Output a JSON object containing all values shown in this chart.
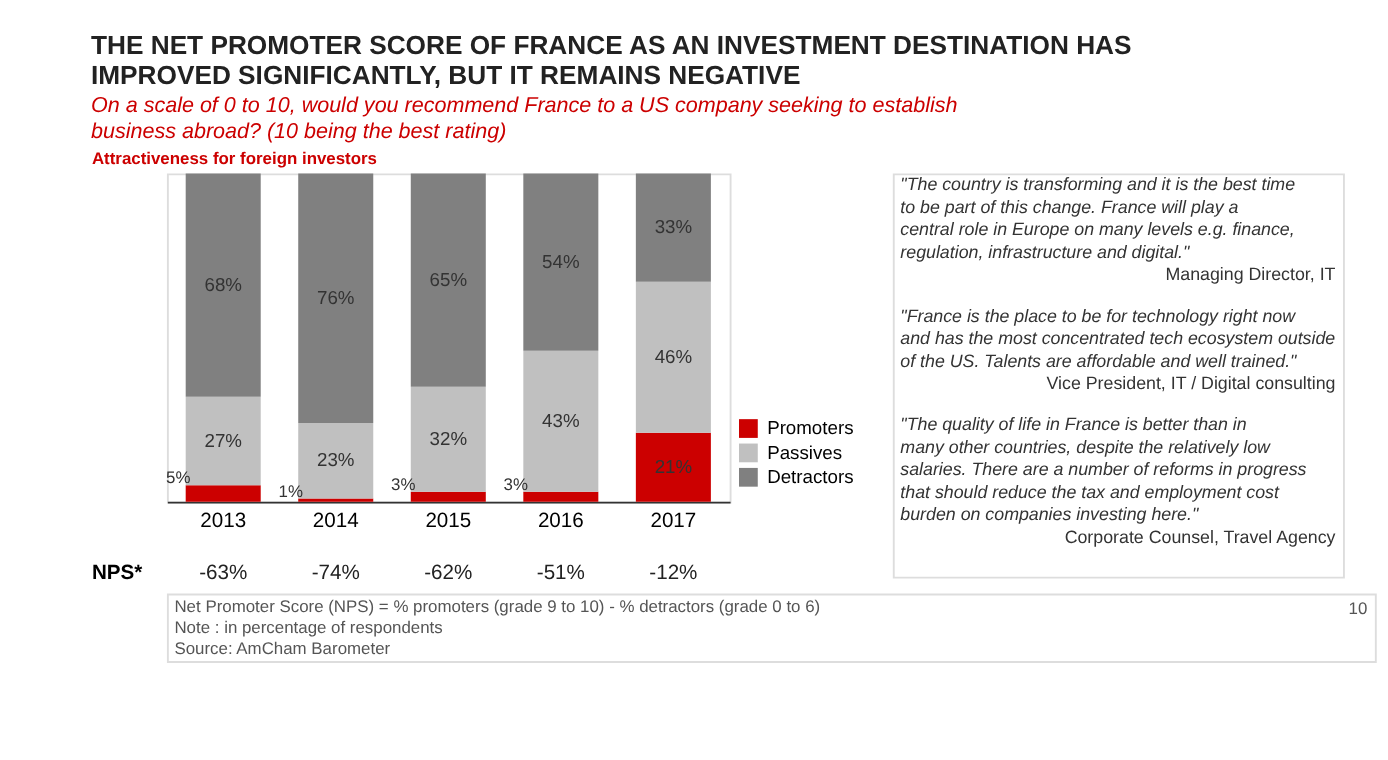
{
  "chart_data": {
    "type": "bar",
    "stacked": true,
    "legend": "right",
    "title": "THE NET PROMOTER SCORE OF FRANCE AS AN INVESTMENT DESTINATION HAS IMPROVED SIGNIFICANTLY, BUT IT REMAINS NEGATIVE",
    "subtitle": "On a scale of 0 to 10, would you recommend France to a US company seeking to establish business abroad? (10 being the best rating)",
    "categories": [
      "2013",
      "2014",
      "2015",
      "2016",
      "2017"
    ],
    "series": [
      {
        "name": "Promoters",
        "color": "#cc0000",
        "values": [
          5,
          1,
          3,
          3,
          21
        ],
        "value_labels": [
          "5%",
          "1%",
          "3%",
          "3%",
          "21%"
        ]
      },
      {
        "name": "Passives",
        "color": "#c0c0c0",
        "values": [
          27,
          23,
          32,
          43,
          46
        ],
        "value_labels": [
          "27%",
          "23%",
          "32%",
          "43%",
          "46%"
        ]
      },
      {
        "name": "Detractors",
        "color": "#808080",
        "values": [
          68,
          76,
          65,
          54,
          33
        ],
        "value_labels": [
          "68%",
          "76%",
          "65%",
          "54%",
          "33%"
        ]
      }
    ],
    "annotations": [
      "Attractiveness for foreign investors",
      "NPS*",
      "-63%",
      "-74%",
      "-62%",
      "-51%",
      "-12%",
      "\"The country is transforming and it is the best time to be part of this change. France will play a central role in Europe on many levels e.g. finance, regulation, infrastructure and digital.\"",
      "Managing Director, IT",
      "\"France is the place to be for technology right now and has the most concentrated tech ecosystem outside of the US. Talents are affordable and well trained.\"",
      "Vice President, IT / Digital consulting",
      "\"The quality of life in France is better than in many other countries, despite the relatively low salaries. There are a number of reforms in progress that should reduce the tax and employment cost burden on companies investing here.\"",
      "Corporate Counsel, Travel Agency",
      "Net Promoter Score (NPS) = % promoters (grade 9 to 10) - % detractors (grade 0 to 6)",
      "Note : in percentage of respondents",
      "Source: AmCham Barometer",
      "10"
    ]
  }
}
